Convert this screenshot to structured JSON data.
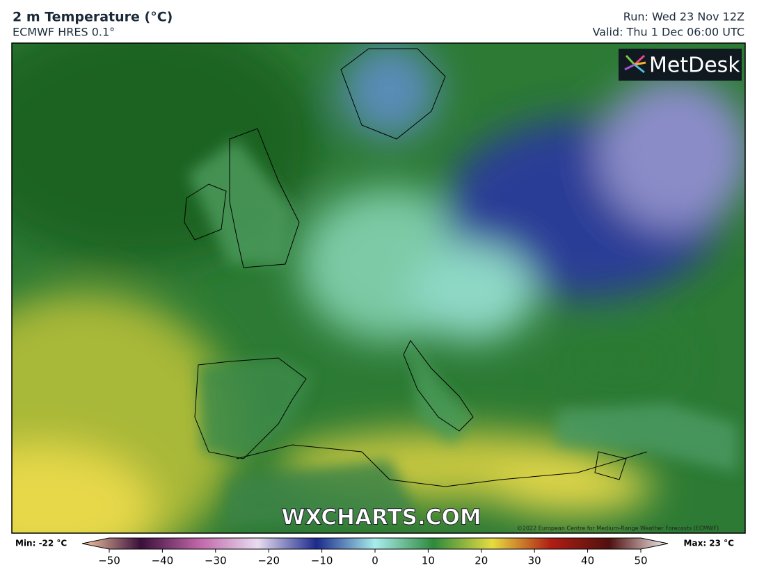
{
  "header": {
    "title": "2 m Temperature (°C)",
    "subtitle": "ECMWF HRES 0.1°",
    "run": "Run: Wed 23 Nov 12Z",
    "valid": "Valid: Thu 1 Dec 06:00 UTC"
  },
  "map": {
    "logo": "MetDesk",
    "watermark": "WXCHARTS.COM",
    "copyright": "©2022 European Centre for Medium-Range Weather Forecasts (ECMWF)"
  },
  "colorbar": {
    "min_label": "Min: -22 °C",
    "max_label": "Max: 23 °C",
    "range": [
      -50,
      50
    ],
    "ticks": [
      {
        "value": -50,
        "label": "−50"
      },
      {
        "value": -40,
        "label": "−40"
      },
      {
        "value": -30,
        "label": "−30"
      },
      {
        "value": -20,
        "label": "−20"
      },
      {
        "value": -10,
        "label": "−10"
      },
      0,
      10,
      20,
      30,
      40,
      50
    ]
  }
}
